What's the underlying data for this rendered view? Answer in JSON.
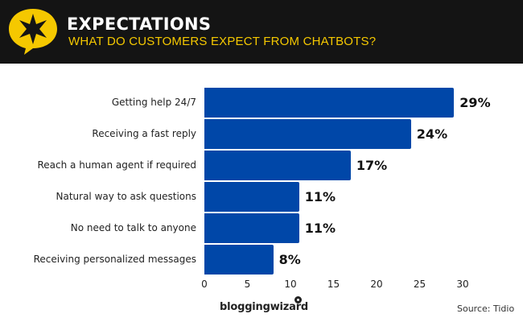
{
  "header": {
    "title": "EXPECTATIONS",
    "subtitle": "WHAT DO CUSTOMERS EXPECT FROM CHATBOTS?",
    "icon": "star-speech-bubble-icon",
    "colors": {
      "background": "#141414",
      "accent": "#f5c800",
      "title": "#ffffff"
    }
  },
  "chart_data": {
    "type": "bar",
    "orientation": "horizontal",
    "title": "WHAT DO CUSTOMERS EXPECT FROM CHATBOTS?",
    "categories": [
      "Getting help 24/7",
      "Receiving a fast reply",
      "Reach a human agent if required",
      "Natural way to ask questions",
      "No need to talk to anyone",
      "Receiving personalized messages"
    ],
    "values": [
      29,
      24,
      17,
      11,
      11,
      8
    ],
    "value_labels": [
      "29%",
      "24%",
      "17%",
      "11%",
      "11%",
      "8%"
    ],
    "xlabel": "",
    "ylabel": "",
    "xlim": [
      0,
      30
    ],
    "x_ticks": [
      "0",
      "5",
      "10",
      "15",
      "20",
      "25",
      "30"
    ],
    "grid": false,
    "legend": null,
    "bar_color": "#0047a8"
  },
  "footer": {
    "brand": "bloggingwizard",
    "source": "Source:  Tidio"
  }
}
